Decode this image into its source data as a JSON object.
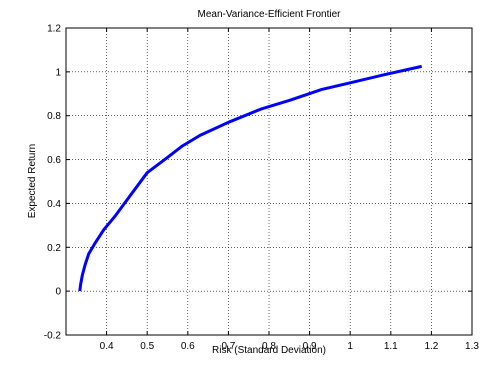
{
  "chart_data": {
    "type": "line",
    "title": "Mean-Variance-Efficient Frontier",
    "xlabel": "Risk (Standard Deviation)",
    "ylabel": "Expected Return",
    "xlim": [
      0.3,
      1.3
    ],
    "ylim": [
      -0.2,
      1.2
    ],
    "xticks": [
      "0.4",
      "0.5",
      "0.6",
      "0.7",
      "0.8",
      "0.9",
      "1",
      "1.1",
      "1.2",
      "1.3"
    ],
    "yticks": [
      "-0.2",
      "0",
      "0.2",
      "0.4",
      "0.6",
      "0.8",
      "1",
      "1.2"
    ],
    "grid": true,
    "series": [
      {
        "color": "#0000ff",
        "x": [
          0.334,
          0.336,
          0.34,
          0.347,
          0.356,
          0.372,
          0.393,
          0.42,
          0.452,
          0.5,
          0.55,
          0.585,
          0.63,
          0.7,
          0.78,
          0.85,
          0.93,
          1.0,
          1.08,
          1.176
        ],
        "y": [
          0.0,
          0.03,
          0.07,
          0.12,
          0.17,
          0.22,
          0.28,
          0.34,
          0.42,
          0.54,
          0.61,
          0.66,
          0.71,
          0.77,
          0.83,
          0.87,
          0.92,
          0.95,
          0.985,
          1.025
        ]
      }
    ]
  }
}
